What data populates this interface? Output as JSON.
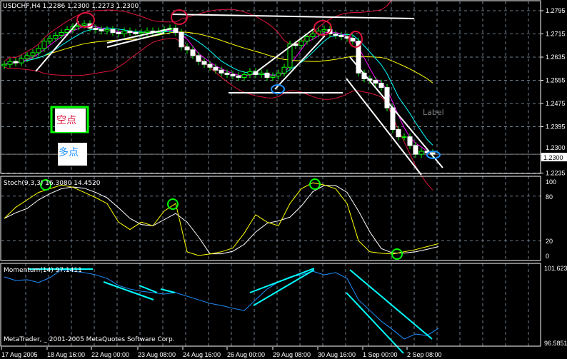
{
  "header": {
    "title": "USDCHF,H4  1.2286 1.2300 1.2273 1.2300"
  },
  "colors": {
    "background": "#000000",
    "bull_candle": "#00ff00",
    "bear_candle": "#ffffff",
    "ma_fast": "#ff00ff",
    "ma_mid": "#00ffff",
    "ma_slow": "#ffff00",
    "bands": "#dc143c",
    "stoch_main": "#ffff00",
    "stoch_signal": "#ffffff",
    "momentum": "#1e90ff",
    "trendline": "#ffffff",
    "momentum_trendline": "#00ffff",
    "grid": "#708090"
  },
  "annotations": {
    "short_label": "空点",
    "long_label": "多点",
    "text_label": "Label"
  },
  "footer": {
    "copyright": "MetaTrader, _ 2001-2005 MetaQuotes Software Corp."
  },
  "chart_data": [
    {
      "type": "candlestick",
      "symbol": "USDCHF",
      "timeframe": "H4",
      "ylim": [
        1.2235,
        1.2795
      ],
      "y_ticks": [
        "1.2795",
        "1.2715",
        "1.2635",
        "1.2555",
        "1.2475",
        "1.2395",
        "1.2300",
        "1.2235"
      ],
      "current_price": "1.2300",
      "x_ticks": [
        "17 Aug 2005",
        "18 Aug 16:00",
        "22 Aug 00:00",
        "23 Aug 08:00",
        "24 Aug 16:00",
        "26 Aug 00:00",
        "29 Aug 08:00",
        "30 Aug 16:00",
        "1 Sep 00:00",
        "2 Sep 08:00"
      ],
      "grid": true,
      "close": [
        1.261,
        1.262,
        1.2615,
        1.263,
        1.264,
        1.265,
        1.2665,
        1.269,
        1.27,
        1.271,
        1.272,
        1.273,
        1.274,
        1.2745,
        1.275,
        1.2735,
        1.273,
        1.2725,
        1.273,
        1.272,
        1.2715,
        1.2725,
        1.272,
        1.2715,
        1.272,
        1.2725,
        1.272,
        1.2725,
        1.273,
        1.2735,
        1.272,
        1.267,
        1.266,
        1.264,
        1.262,
        1.261,
        1.26,
        1.259,
        1.258,
        1.2575,
        1.257,
        1.2565,
        1.2575,
        1.2585,
        1.2575,
        1.258,
        1.2565,
        1.257,
        1.258,
        1.26,
        1.268,
        1.2675,
        1.269,
        1.2705,
        1.2715,
        1.2725,
        1.273,
        1.2715,
        1.271,
        1.2705,
        1.27,
        1.269,
        1.258,
        1.256,
        1.2555,
        1.2545,
        1.253,
        1.246,
        1.2385,
        1.236,
        1.236,
        1.233,
        1.23,
        1.231,
        1.2305,
        1.23
      ]
    },
    {
      "type": "line",
      "title": "Stoch(9,3,3) 16.3080 14.4520",
      "ylim": [
        0,
        100
      ],
      "y_ticks": [
        "100",
        "80",
        "20",
        "0"
      ],
      "main": [
        50,
        65,
        75,
        85,
        90,
        95,
        92,
        85,
        78,
        70,
        45,
        35,
        45,
        40,
        60,
        70,
        5,
        0,
        2,
        5,
        10,
        30,
        55,
        45,
        40,
        70,
        90,
        98,
        95,
        90,
        70,
        20,
        5,
        3,
        2,
        5,
        8,
        12,
        16
      ]
    },
    {
      "type": "line",
      "title": "Momentum(14) 97.1411",
      "ylim": [
        96.5851,
        101.623
      ],
      "y_ticks": [
        "101.623",
        "96.5851"
      ],
      "values": [
        101.0,
        100.76,
        100.81,
        100.62,
        100.95,
        101.48,
        101.38,
        101.29,
        101.14,
        100.9,
        100.42,
        100.18,
        100.04,
        99.94,
        99.85,
        99.94,
        99.7,
        99.46,
        99.22,
        99.08,
        98.89,
        98.74,
        99.46,
        100.18,
        100.66,
        101.0,
        101.14,
        101.38,
        101.14,
        101.29,
        100.9,
        99.46,
        98.74,
        98.02,
        97.45,
        96.82,
        97.16,
        97.06,
        97.54
      ]
    }
  ]
}
